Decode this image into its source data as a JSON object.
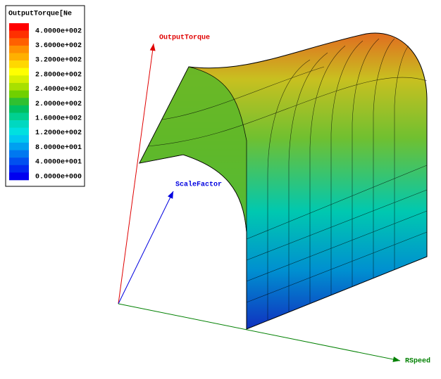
{
  "chart_data": {
    "type": "surface3d",
    "title": "OutputTorque[Ne",
    "zlabel": "OutputTorque",
    "ylabel": "ScaleFactor",
    "xlabel": "RSpeed",
    "colorbar": {
      "ticks": [
        {
          "value": 400,
          "label": "4.0000e+002"
        },
        {
          "value": 360,
          "label": "3.6000e+002"
        },
        {
          "value": 320,
          "label": "3.2000e+002"
        },
        {
          "value": 280,
          "label": "2.8000e+002"
        },
        {
          "value": 240,
          "label": "2.4000e+002"
        },
        {
          "value": 200,
          "label": "2.0000e+002"
        },
        {
          "value": 160,
          "label": "1.6000e+002"
        },
        {
          "value": 120,
          "label": "1.2000e+002"
        },
        {
          "value": 80,
          "label": "8.0000e+001"
        },
        {
          "value": 40,
          "label": "4.0000e+001"
        },
        {
          "value": 0,
          "label": "0.0000e+000"
        }
      ],
      "colors": [
        "#ff0000",
        "#ff3000",
        "#ff6000",
        "#ff9000",
        "#ffb000",
        "#ffd800",
        "#ffff00",
        "#d8f000",
        "#a8e000",
        "#70d000",
        "#30c030",
        "#00c060",
        "#00d090",
        "#00d8c0",
        "#00e0e0",
        "#00c8f0",
        "#00a0f0",
        "#0078f0",
        "#0050f0",
        "#0028f0",
        "#0000f0"
      ]
    },
    "axis_colors": {
      "z": "#e00000",
      "y": "#0000e0",
      "x": "#008000"
    }
  }
}
